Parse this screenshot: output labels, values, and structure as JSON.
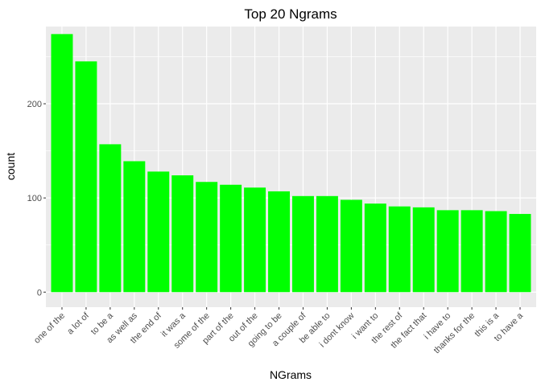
{
  "chart_data": {
    "type": "bar",
    "title": "Top 20 Ngrams",
    "xlabel": "NGrams",
    "ylabel": "count",
    "categories": [
      "one of the",
      "a lot of",
      "to be a",
      "as well as",
      "the end of",
      "it was a",
      "some of the",
      "part of the",
      "out of the",
      "going to be",
      "a couple of",
      "be able to",
      "i dont know",
      "i want to",
      "the rest of",
      "the fact that",
      "i have to",
      "thanks for the",
      "this is a",
      "to have a"
    ],
    "values": [
      274,
      245,
      157,
      139,
      128,
      124,
      117,
      114,
      111,
      107,
      102,
      102,
      98,
      94,
      91,
      90,
      87,
      87,
      86,
      83
    ],
    "ylim": [
      0,
      282
    ],
    "yticks": [
      0,
      100,
      200
    ],
    "grid": true,
    "legend": "none",
    "bar_color": "#00ff00",
    "panel_background": "#ebebeb",
    "grid_color": "#ffffff"
  }
}
